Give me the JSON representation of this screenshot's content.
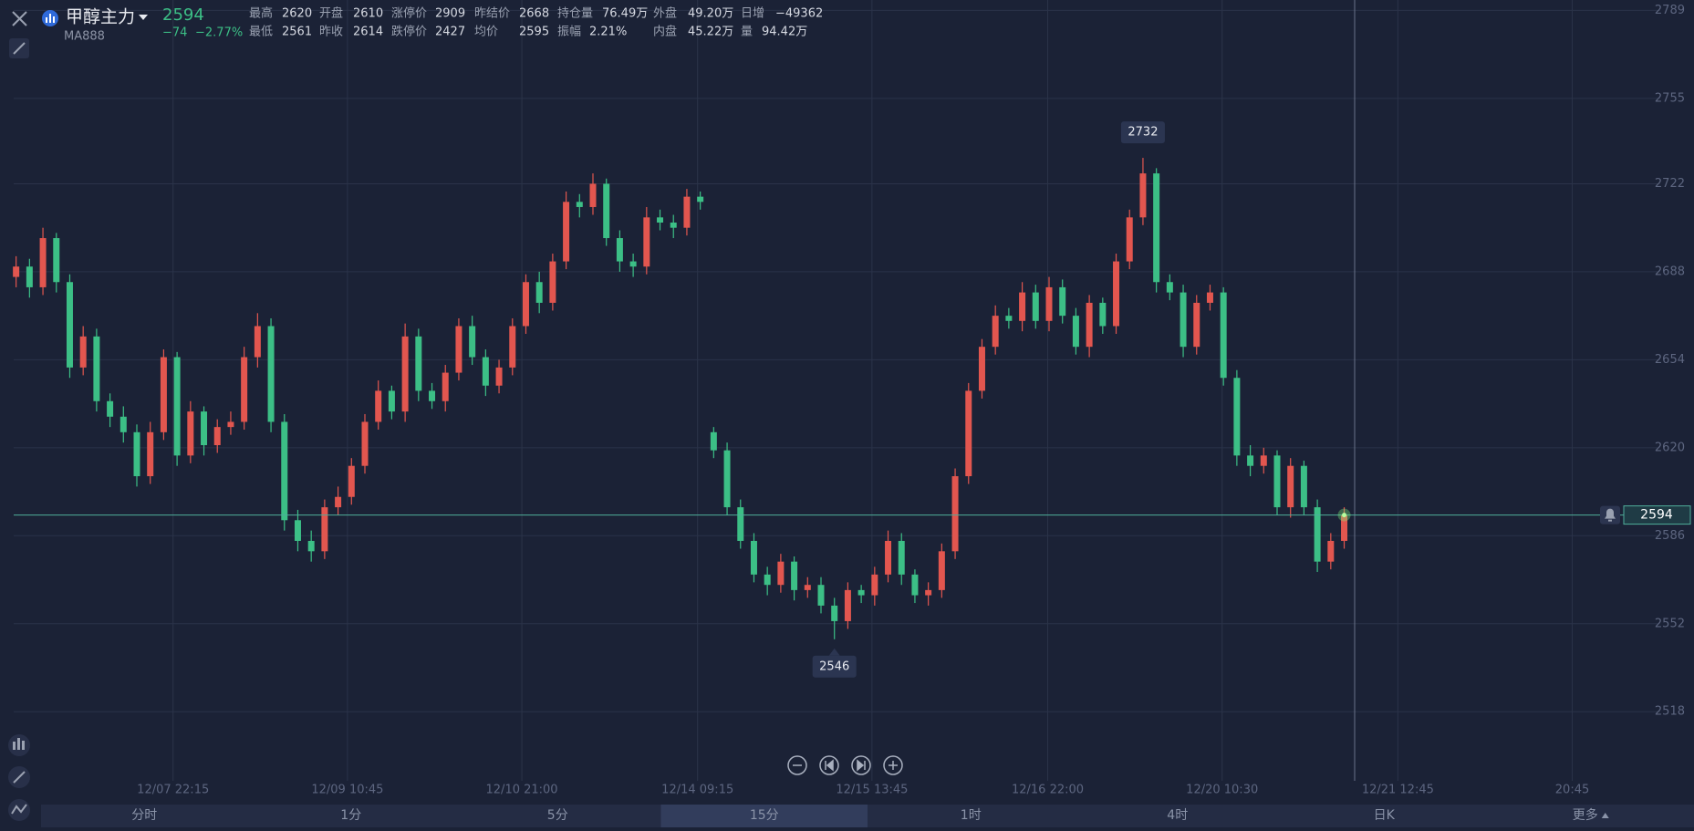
{
  "header": {
    "name": "甲醇主力",
    "code": "MA888",
    "price": "2594",
    "change": "−74",
    "change_pct": "−2.77%",
    "stats": [
      [
        {
          "label": "最高",
          "value": "2620",
          "color": "#e2564f"
        },
        {
          "label": "开盘",
          "value": "2610",
          "color": "#3cbf86"
        },
        {
          "label": "涨停价",
          "value": "2909"
        },
        {
          "label": "昨结价",
          "value": "2668"
        },
        {
          "label": "持仓量",
          "value": "76.49万"
        },
        {
          "label": "外盘",
          "value": "49.20万"
        },
        {
          "label": "日增",
          "value": "−49362"
        }
      ],
      [
        {
          "label": "最低",
          "value": "2561",
          "color": "#3cbf86"
        },
        {
          "label": "昨收",
          "value": "2614"
        },
        {
          "label": "跌停价",
          "value": "2427"
        },
        {
          "label": "均价",
          "value": "2595"
        },
        {
          "label": "振幅",
          "value": "2.21%"
        },
        {
          "label": "内盘",
          "value": "45.22万"
        },
        {
          "label": "量",
          "value": "94.42万"
        }
      ]
    ]
  },
  "periods": {
    "items": [
      "分时",
      "1分",
      "5分",
      "15分",
      "1时",
      "4时",
      "日K",
      "更多"
    ],
    "active": 3
  },
  "chart_data": {
    "type": "candlestick",
    "up_color": "#e2564f",
    "down_color": "#3cbf86",
    "grid": true,
    "ylim": [
      2492,
      2793
    ],
    "yticks": [
      2518,
      2552,
      2586,
      2620,
      2654,
      2688,
      2722,
      2755,
      2789
    ],
    "xlim": [
      -1.2,
      121.2
    ],
    "xticks": [
      {
        "value": 11.7,
        "label": "12/07 22:15"
      },
      {
        "value": 24.7,
        "label": "12/09 10:45"
      },
      {
        "value": 37.7,
        "label": "12/10 21:00"
      },
      {
        "value": 50.8,
        "label": "12/14 09:15"
      },
      {
        "value": 63.8,
        "label": "12/15 13:45"
      },
      {
        "value": 76.9,
        "label": "12/16 22:00"
      },
      {
        "value": 89.9,
        "label": "12/20 10:30"
      },
      {
        "value": 103,
        "label": "12/21 12:45"
      },
      {
        "value": 116,
        "label": "20:45"
      }
    ],
    "open": [
      2686,
      2690,
      2682,
      2701,
      2684,
      2651,
      2663,
      2638,
      2632,
      2626,
      2609,
      2626,
      2655,
      2617,
      2634,
      2621,
      2628,
      2630,
      2655,
      2667,
      2630,
      2592,
      2584,
      2580,
      2597,
      2601,
      2613,
      2630,
      2642,
      2634,
      2663,
      2642,
      2638,
      2649,
      2667,
      2655,
      2644,
      2651,
      2667,
      2684,
      2676,
      2692,
      2715,
      2713,
      2722,
      2701,
      2692,
      2690,
      2709,
      2707,
      2705,
      2717,
      2626,
      2619,
      2597,
      2584,
      2571,
      2567,
      2576,
      2565,
      2567,
      2559,
      2553,
      2565,
      2563,
      2571,
      2584,
      2571,
      2563,
      2565,
      2580,
      2609,
      2642,
      2659,
      2671,
      2669,
      2680,
      2669,
      2682,
      2671,
      2659,
      2676,
      2667,
      2692,
      2709,
      2726,
      2684,
      2680,
      2659,
      2676,
      2680,
      2647,
      2617,
      2613,
      2617,
      2597,
      2613,
      2597,
      2576,
      2584
    ],
    "high": [
      2694,
      2693,
      2705,
      2703,
      2687,
      2667,
      2666,
      2641,
      2636,
      2629,
      2630,
      2658,
      2657,
      2638,
      2636,
      2631,
      2634,
      2659,
      2672,
      2670,
      2633,
      2596,
      2588,
      2600,
      2605,
      2616,
      2633,
      2646,
      2644,
      2668,
      2666,
      2645,
      2652,
      2670,
      2671,
      2658,
      2654,
      2670,
      2687,
      2688,
      2695,
      2719,
      2718,
      2726,
      2724,
      2704,
      2695,
      2713,
      2712,
      2710,
      2720,
      2719,
      2628,
      2622,
      2600,
      2587,
      2574,
      2579,
      2578,
      2570,
      2570,
      2562,
      2568,
      2567,
      2574,
      2588,
      2587,
      2573,
      2568,
      2583,
      2612,
      2645,
      2662,
      2675,
      2674,
      2684,
      2683,
      2686,
      2685,
      2674,
      2679,
      2678,
      2695,
      2712,
      2732,
      2728,
      2687,
      2683,
      2679,
      2683,
      2682,
      2650,
      2621,
      2620,
      2619,
      2616,
      2615,
      2600,
      2587,
      2597
    ],
    "low": [
      2682,
      2678,
      2679,
      2680,
      2647,
      2648,
      2634,
      2628,
      2622,
      2605,
      2606,
      2623,
      2613,
      2614,
      2617,
      2618,
      2625,
      2627,
      2651,
      2626,
      2588,
      2580,
      2576,
      2577,
      2594,
      2598,
      2610,
      2627,
      2631,
      2630,
      2638,
      2635,
      2634,
      2646,
      2652,
      2640,
      2641,
      2648,
      2664,
      2672,
      2673,
      2689,
      2709,
      2710,
      2698,
      2688,
      2686,
      2687,
      2704,
      2701,
      2702,
      2712,
      2616,
      2594,
      2581,
      2568,
      2563,
      2564,
      2561,
      2562,
      2556,
      2546,
      2550,
      2560,
      2559,
      2568,
      2567,
      2560,
      2559,
      2562,
      2577,
      2606,
      2639,
      2656,
      2666,
      2665,
      2666,
      2665,
      2668,
      2656,
      2655,
      2664,
      2664,
      2689,
      2706,
      2680,
      2677,
      2655,
      2656,
      2673,
      2644,
      2613,
      2609,
      2610,
      2594,
      2593,
      2594,
      2572,
      2573,
      2581
    ],
    "close": [
      2690,
      2682,
      2701,
      2684,
      2651,
      2663,
      2638,
      2632,
      2626,
      2609,
      2626,
      2655,
      2617,
      2634,
      2621,
      2628,
      2630,
      2655,
      2667,
      2630,
      2592,
      2584,
      2580,
      2597,
      2601,
      2613,
      2630,
      2642,
      2634,
      2663,
      2642,
      2638,
      2649,
      2667,
      2655,
      2644,
      2651,
      2667,
      2684,
      2676,
      2692,
      2715,
      2713,
      2722,
      2701,
      2692,
      2690,
      2709,
      2707,
      2705,
      2717,
      2715,
      2619,
      2597,
      2584,
      2571,
      2567,
      2576,
      2565,
      2567,
      2559,
      2553,
      2565,
      2563,
      2571,
      2584,
      2571,
      2563,
      2565,
      2580,
      2609,
      2642,
      2659,
      2671,
      2669,
      2680,
      2669,
      2682,
      2671,
      2659,
      2676,
      2667,
      2692,
      2709,
      2726,
      2684,
      2680,
      2659,
      2676,
      2680,
      2647,
      2617,
      2613,
      2617,
      2597,
      2613,
      2597,
      2576,
      2584,
      2594
    ]
  }
}
